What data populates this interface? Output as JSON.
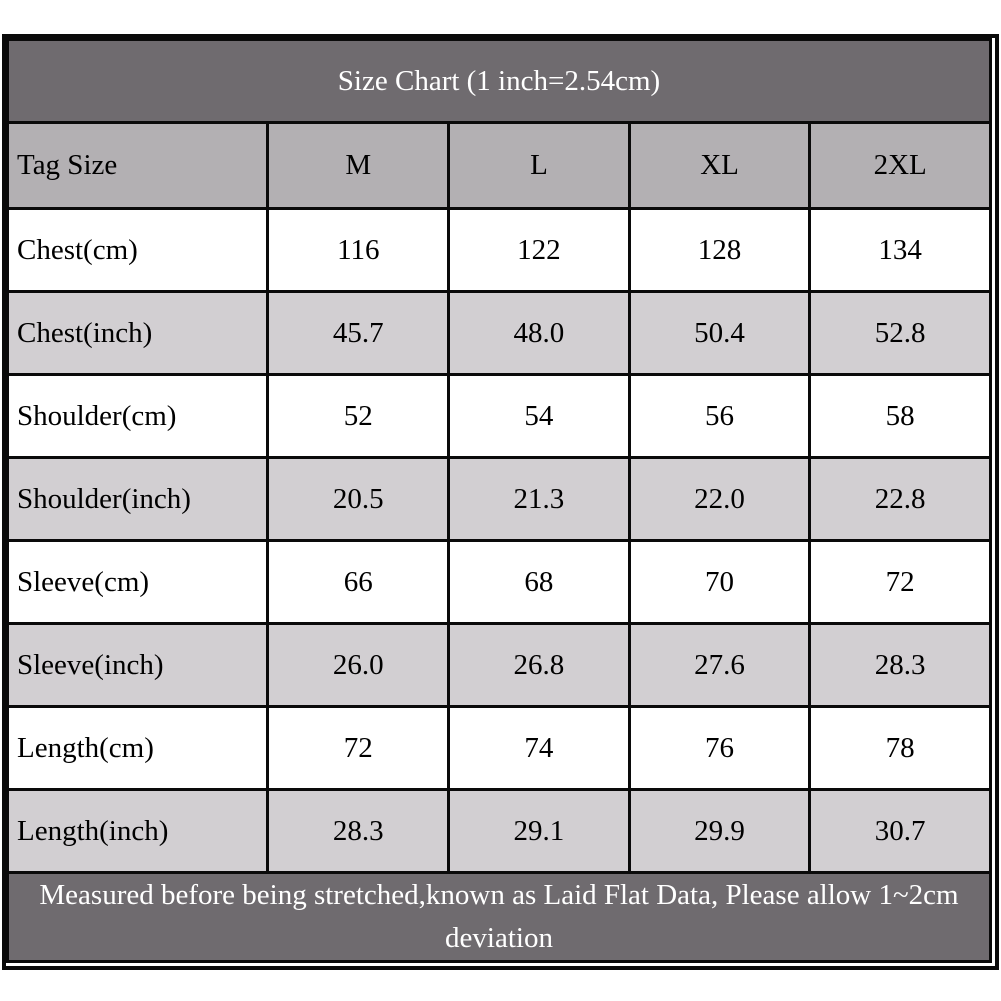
{
  "chart_data": {
    "type": "table",
    "title": "Size Chart (1 inch=2.54cm)",
    "header": {
      "label_column": "Tag Size",
      "size_columns": [
        "M",
        "L",
        "XL",
        "2XL"
      ]
    },
    "rows": [
      {
        "label": "Chest(cm)",
        "values": [
          "116",
          "122",
          "128",
          "134"
        ]
      },
      {
        "label": "Chest(inch)",
        "values": [
          "45.7",
          "48.0",
          "50.4",
          "52.8"
        ]
      },
      {
        "label": "Shoulder(cm)",
        "values": [
          "52",
          "54",
          "56",
          "58"
        ]
      },
      {
        "label": "Shoulder(inch)",
        "values": [
          "20.5",
          "21.3",
          "22.0",
          "22.8"
        ]
      },
      {
        "label": "Sleeve(cm)",
        "values": [
          "66",
          "68",
          "70",
          "72"
        ]
      },
      {
        "label": "Sleeve(inch)",
        "values": [
          "26.0",
          "26.8",
          "27.6",
          "28.3"
        ]
      },
      {
        "label": "Length(cm)",
        "values": [
          "72",
          "74",
          "76",
          "78"
        ]
      },
      {
        "label": "Length(inch)",
        "values": [
          "28.3",
          "29.1",
          "29.9",
          "30.7"
        ]
      }
    ],
    "footer_note": "Measured before being stretched,known as Laid Flat Data, Please allow 1~2cm deviation",
    "layout": {
      "grid": "off",
      "row_striping": [
        "#ffffff",
        "#d2cfd2"
      ]
    }
  },
  "colors": {
    "title_band_bg": "#6f6b6f",
    "header_row_bg": "#b3b0b3",
    "row_bg": "#ffffff",
    "row_alt_bg": "#d2cfd2",
    "border": "#0a0a0a",
    "title_text": "#ffffff",
    "cell_text": "#000000"
  }
}
